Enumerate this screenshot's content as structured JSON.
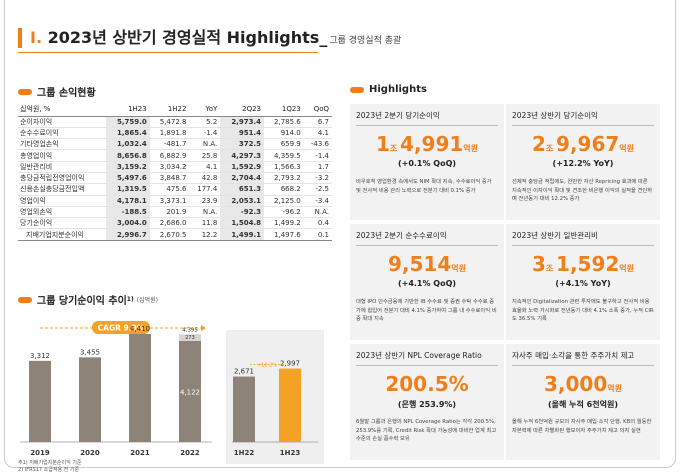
{
  "header": {
    "number": "I.",
    "title": "2023년 상반기 경영실적 Highlights_",
    "subtitle": "그룹 경영실적 총괄"
  },
  "income": {
    "title": "그룹 손익현황",
    "columns": [
      "십억원, %",
      "1H23",
      "1H22",
      "YoY",
      "2Q23",
      "1Q23",
      "QoQ"
    ],
    "rows": [
      {
        "label": "순이자이익",
        "v": [
          "5,759.0",
          "5,472.8",
          "5.2",
          "2,973.4",
          "2,785.6",
          "6.7"
        ],
        "sub": false
      },
      {
        "label": "순수수료이익",
        "v": [
          "1,865.4",
          "1,891.8",
          "-1.4",
          "951.4",
          "914.0",
          "4.1"
        ],
        "sub": false
      },
      {
        "label": "기타영업손익",
        "v": [
          "1,032.4",
          "-481.7",
          "N.A.",
          "372.5",
          "659.9",
          "-43.6"
        ],
        "sub": false
      },
      {
        "label": "총영업이익",
        "v": [
          "8,656.8",
          "6,882.9",
          "25.8",
          "4,297.3",
          "4,359.5",
          "-1.4"
        ],
        "sub": false
      },
      {
        "label": "일반관리비",
        "v": [
          "3,159.2",
          "3,034.2",
          "4.1",
          "1,592.9",
          "1,566.3",
          "1.7"
        ],
        "sub": false
      },
      {
        "label": "충당금적립전영업이익",
        "v": [
          "5,497.6",
          "3,848.7",
          "42.8",
          "2,704.4",
          "2,793.2",
          "-3.2"
        ],
        "sub": false
      },
      {
        "label": "신용손실충당금전입액",
        "v": [
          "1,319.5",
          "475.6",
          "177.4",
          "651.3",
          "668.2",
          "-2.5"
        ],
        "sub": false
      },
      {
        "label": "영업이익",
        "v": [
          "4,178.1",
          "3,373.1",
          "23.9",
          "2,053.1",
          "2,125.0",
          "-3.4"
        ],
        "sub": false
      },
      {
        "label": "영업외손익",
        "v": [
          "-188.5",
          "201.9",
          "N.A.",
          "-92.3",
          "-96.2",
          "N.A."
        ],
        "sub": false
      },
      {
        "label": "당기순이익",
        "v": [
          "3,004.0",
          "2,686.0",
          "11.8",
          "1,504.8",
          "1,499.2",
          "0.4"
        ],
        "sub": false
      },
      {
        "label": "지배기업지분순이익",
        "v": [
          "2,996.7",
          "2,670.5",
          "12.2",
          "1,499.1",
          "1,497.6",
          "0.1"
        ],
        "sub": true
      }
    ]
  },
  "trend": {
    "title": "그룹 당기순이익 추이",
    "title_sup": "1)",
    "unit": "(십억원)",
    "cagr": "CAGR 9.9%",
    "footnotes": [
      "주1) 지배기업지분순이익 기준",
      "2) IFRS17 소급적용 전 기준"
    ]
  },
  "chart_data": {
    "type": "bar",
    "categories": [
      "2019",
      "2020",
      "2021",
      "2022",
      "1H22",
      "1H23"
    ],
    "values": [
      3312,
      3455,
      4410,
      4122,
      2671,
      2997
    ],
    "value_labels": [
      "3,312",
      "3,455",
      "4,410",
      "4,122",
      "2,671",
      "2,997"
    ],
    "extra_2022": {
      "label": "4,395",
      "sup": "2)",
      "diff_label": "273",
      "total": 4395
    },
    "yoy_label": "+12.2%",
    "colors": {
      "past": "#8d8378",
      "current": "#f4a224",
      "segment": "#d8d3cf"
    }
  },
  "highlights": {
    "title": "Highlights",
    "cards": [
      {
        "title": "2023년 2분기 당기순이익",
        "big_a": "1",
        "unit_a": "조 ",
        "big_b": "4,991",
        "unit_b": "억원",
        "delta": "(+0.1% QoQ)",
        "desc": "비우호적 영업환경 속에서도 NIM 확대 지속, 수수료이익 증가 및 전사적 비용 관리 노력으로 전분기 대비 0.1% 증가"
      },
      {
        "title": "2023년 상반기 당기순이익",
        "big_a": "2",
        "unit_a": "조 ",
        "big_b": "9,967",
        "unit_b": "억원",
        "delta": "(+12.2% YoY)",
        "desc": "선제적 충당금 적립에도, 완만한 자산 Repricing 효과에 따른 지속적인 이자이익 확대 및 견조한 비은행 이익의 실적을 견인하며 전년동기 대비 12.2% 증가"
      },
      {
        "title": "2023년 2분기 순수수료이익",
        "big_a": "",
        "unit_a": "",
        "big_b": "9,514",
        "unit_b": "억원",
        "delta": "(+4.1% QoQ)",
        "desc": "대형 IPO 인수금융에 기반한 IB 수수료 및 증권 수탁 수수료 증가에 힘입어 전분기 대비 4.1% 증가하여 그룹 내 수수료이익 비중 확대 지속"
      },
      {
        "title": "2023년 상반기 일반관리비",
        "big_a": "3",
        "unit_a": "조 ",
        "big_b": "1,592",
        "unit_b": "억원",
        "delta": "(+4.1% YoY)",
        "desc": "지속적인 Digitalization 관련 투자에도 불구하고 전사적 비용 효율화 노력 가시화로 전년동기 대비 4.1% 소폭 증가, 누적 CIR도 36.5% 기록"
      },
      {
        "title": "2023년 상반기 NPL Coverage Ratio",
        "big_a": "",
        "unit_a": "",
        "big_b": "200.5%",
        "unit_b": "",
        "delta": "(은행 253.9%)",
        "desc": "6월말 그룹과 은행의 NPL Coverage Ratio는 각각 200.5%, 253.9%를 기록, Credit Risk 확대 가능성에 대비한 업계 최고 수준의 손실 흡수력 보유"
      },
      {
        "title": "자사주 매입·소각을 통한 주주가치 제고",
        "big_a": "",
        "unit_a": "",
        "big_b": "3,000",
        "unit_b": "억원",
        "delta": "(올해 누적 6천억원)",
        "desc": "올해 누적 6천억원 규모의 자사주 매입·소각 단행, KB의 월등한 자본력에 따른 차별화된 행보이자 주주가치 제고 의지 실현"
      }
    ]
  }
}
